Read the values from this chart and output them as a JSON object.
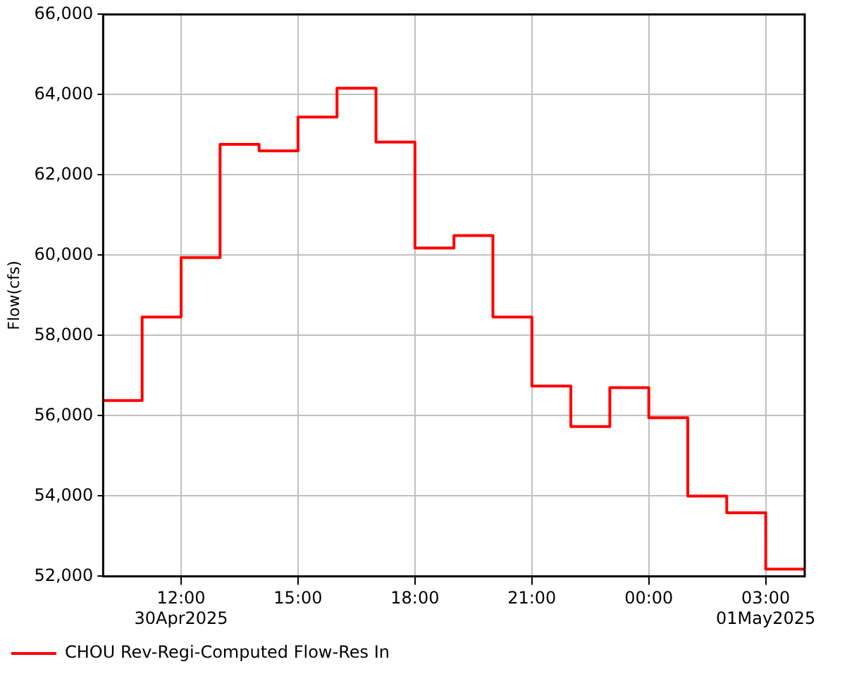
{
  "chart_data": {
    "type": "step",
    "ylabel": "Flow(cfs)",
    "x": [
      10,
      11,
      12,
      13,
      14,
      15,
      16,
      17,
      18,
      19,
      20,
      21,
      22,
      23,
      24,
      25,
      26,
      27,
      28
    ],
    "series": [
      {
        "name": "CHOU Rev-Regi-Computed Flow-Res In",
        "color": "#ff0000",
        "values": [
          56380,
          58460,
          59940,
          62760,
          62600,
          63440,
          64160,
          62820,
          60180,
          60490,
          58460,
          56740,
          55730,
          56700,
          55950,
          54000,
          53580,
          52180,
          52180
        ]
      }
    ],
    "xlim": [
      10,
      28
    ],
    "xticks": [
      {
        "value": 12,
        "label": "12:00\n30Apr2025"
      },
      {
        "value": 15,
        "label": "15:00"
      },
      {
        "value": 18,
        "label": "18:00"
      },
      {
        "value": 21,
        "label": "21:00"
      },
      {
        "value": 24,
        "label": "00:00"
      },
      {
        "value": 27,
        "label": "03:00\n01May2025"
      }
    ],
    "ylim": [
      52000,
      66000
    ],
    "yticks": [
      {
        "value": 52000,
        "label": "52,000"
      },
      {
        "value": 54000,
        "label": "54,000"
      },
      {
        "value": 56000,
        "label": "56,000"
      },
      {
        "value": 58000,
        "label": "58,000"
      },
      {
        "value": 60000,
        "label": "60,000"
      },
      {
        "value": 62000,
        "label": "62,000"
      },
      {
        "value": 64000,
        "label": "64,000"
      },
      {
        "value": 66000,
        "label": "66,000"
      }
    ],
    "grid": true,
    "legend": "bottom left",
    "line_style": "solid"
  }
}
